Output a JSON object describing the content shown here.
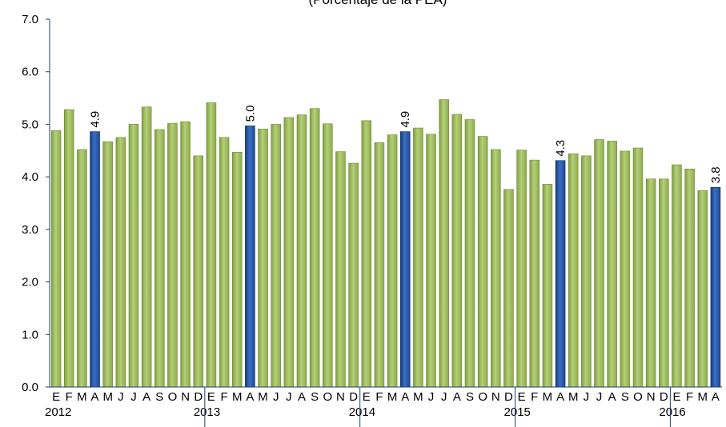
{
  "chart_data": {
    "type": "bar",
    "subtitle": "(Porcentaje de la PEA)",
    "ylim": [
      0,
      7
    ],
    "yticks": [
      "0.0",
      "1.0",
      "2.0",
      "3.0",
      "4.0",
      "5.0",
      "6.0",
      "7.0"
    ],
    "grid": false,
    "categories": [
      "E",
      "F",
      "M",
      "A",
      "M",
      "J",
      "J",
      "A",
      "S",
      "O",
      "N",
      "D",
      "E",
      "F",
      "M",
      "A",
      "M",
      "J",
      "J",
      "A",
      "S",
      "O",
      "N",
      "D",
      "E",
      "F",
      "M",
      "A",
      "M",
      "J",
      "J",
      "A",
      "S",
      "O",
      "N",
      "D",
      "E",
      "F",
      "M",
      "A",
      "M",
      "J",
      "J",
      "A",
      "S",
      "O",
      "N",
      "D",
      "E",
      "F",
      "M",
      "A"
    ],
    "years": [
      "2012",
      "2013",
      "2014",
      "2015",
      "2016"
    ],
    "values": [
      4.88,
      5.28,
      4.52,
      4.86,
      4.67,
      4.75,
      5.0,
      5.33,
      4.9,
      5.02,
      5.05,
      4.4,
      5.41,
      4.75,
      4.47,
      4.97,
      4.91,
      5.0,
      5.13,
      5.18,
      5.3,
      5.01,
      4.48,
      4.26,
      5.07,
      4.65,
      4.8,
      4.86,
      4.93,
      4.81,
      5.47,
      5.19,
      5.09,
      4.77,
      4.52,
      3.76,
      4.51,
      4.32,
      3.86,
      4.31,
      4.44,
      4.4,
      4.71,
      4.68,
      4.49,
      4.55,
      3.96,
      3.96,
      4.23,
      4.15,
      3.74,
      3.8
    ],
    "highlighted": [
      {
        "index": 3,
        "label": "4.9"
      },
      {
        "index": 15,
        "label": "5.0"
      },
      {
        "index": 27,
        "label": "4.9"
      },
      {
        "index": 39,
        "label": "4.3"
      },
      {
        "index": 51,
        "label": "3.8"
      }
    ],
    "colors": {
      "bar": "#9bbb59",
      "highlight": "#1f4e9c",
      "axis": "#1f3f6f"
    }
  }
}
